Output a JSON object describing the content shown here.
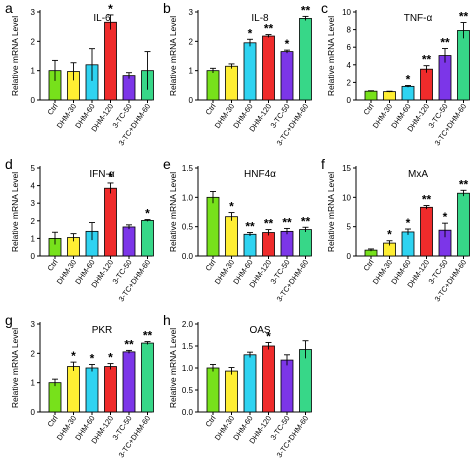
{
  "categories": [
    "Ctrl",
    "DHM-30",
    "DHM-60",
    "DHM-120",
    "3-TC-50",
    "3-TC+DHM-60"
  ],
  "colors": [
    "#77e11b",
    "#ffee33",
    "#2fd3f1",
    "#ef2b2b",
    "#7c36e8",
    "#37d788"
  ],
  "ylabel": "Relative mRNA Level",
  "chart_data": [
    {
      "type": "bar",
      "letter": "a",
      "title": "IL-6",
      "xlabel": "",
      "ylabel": "Relative mRNA Level",
      "ylim": [
        0,
        3
      ],
      "yticks": [
        0,
        1,
        2,
        3
      ],
      "values": [
        1.0,
        0.97,
        1.2,
        2.65,
        0.83,
        1.0
      ],
      "errors": [
        0.35,
        0.3,
        0.55,
        0.25,
        0.1,
        0.65
      ],
      "stars": [
        "",
        "",
        "",
        "*",
        "",
        ""
      ]
    },
    {
      "type": "bar",
      "letter": "b",
      "title": "IL-8",
      "xlabel": "",
      "ylabel": "Relative mRNA Level",
      "ylim": [
        0,
        3
      ],
      "yticks": [
        0,
        1,
        2,
        3
      ],
      "values": [
        1.0,
        1.15,
        1.95,
        2.18,
        1.65,
        2.78
      ],
      "errors": [
        0.08,
        0.08,
        0.12,
        0.05,
        0.05,
        0.07
      ],
      "stars": [
        "",
        "",
        "*",
        "**",
        "*",
        "**"
      ]
    },
    {
      "type": "bar",
      "letter": "c",
      "title": "TNF-α",
      "xlabel": "",
      "ylabel": "Relative mRNA Level",
      "ylim": [
        0,
        10
      ],
      "yticks": [
        0,
        2,
        4,
        6,
        8,
        10
      ],
      "values": [
        1.0,
        0.95,
        1.55,
        3.5,
        5.05,
        7.9
      ],
      "errors": [
        0.05,
        0.05,
        0.1,
        0.4,
        0.8,
        0.9
      ],
      "stars": [
        "",
        "",
        "*",
        "**",
        "**",
        "**"
      ]
    },
    {
      "type": "bar",
      "letter": "d",
      "title": "IFN-α",
      "xlabel": "",
      "ylabel": "Relative mRNA Level",
      "ylim": [
        0,
        5
      ],
      "yticks": [
        0,
        1,
        2,
        3,
        4,
        5
      ],
      "values": [
        1.0,
        1.05,
        1.4,
        3.85,
        1.65,
        2.02
      ],
      "errors": [
        0.35,
        0.22,
        0.5,
        0.3,
        0.12,
        0.05
      ],
      "stars": [
        "",
        "",
        "",
        "*",
        "",
        "*"
      ]
    },
    {
      "type": "bar",
      "letter": "e",
      "title": "HNF4α",
      "xlabel": "",
      "ylabel": "Relative mRNA Level",
      "ylim": [
        0,
        1.5
      ],
      "yticks": [
        0.0,
        0.5,
        1.0,
        1.5
      ],
      "values": [
        1.0,
        0.67,
        0.37,
        0.4,
        0.42,
        0.45
      ],
      "errors": [
        0.1,
        0.07,
        0.03,
        0.05,
        0.05,
        0.04
      ],
      "stars": [
        "",
        "*",
        "**",
        "**",
        "**",
        "**"
      ]
    },
    {
      "type": "bar",
      "letter": "f",
      "title": "MxA",
      "xlabel": "",
      "ylabel": "Relative mRNA Level",
      "ylim": [
        0,
        15
      ],
      "yticks": [
        0,
        5,
        10,
        15
      ],
      "values": [
        1.0,
        2.2,
        4.1,
        8.3,
        4.4,
        10.7
      ],
      "errors": [
        0.2,
        0.4,
        0.5,
        0.3,
        1.2,
        0.5
      ],
      "stars": [
        "",
        "*",
        "*",
        "**",
        "*",
        "**"
      ]
    },
    {
      "type": "bar",
      "letter": "g",
      "title": "PKR",
      "xlabel": "",
      "ylabel": "Relative mRNA Level",
      "ylim": [
        0,
        3
      ],
      "yticks": [
        0,
        1,
        2,
        3
      ],
      "values": [
        1.0,
        1.55,
        1.5,
        1.55,
        2.05,
        2.35
      ],
      "errors": [
        0.12,
        0.15,
        0.12,
        0.1,
        0.05,
        0.05
      ],
      "stars": [
        "",
        "*",
        "*",
        "*",
        "**",
        "**"
      ]
    },
    {
      "type": "bar",
      "letter": "h",
      "title": "OAS",
      "xlabel": "",
      "ylabel": "Relative mRNA Level",
      "ylim": [
        0,
        2
      ],
      "yticks": [
        0.0,
        0.5,
        1.0,
        1.5,
        2.0
      ],
      "values": [
        1.0,
        0.93,
        1.3,
        1.5,
        1.18,
        1.42
      ],
      "errors": [
        0.08,
        0.08,
        0.06,
        0.08,
        0.12,
        0.2
      ],
      "stars": [
        "",
        "",
        "",
        "*",
        "",
        ""
      ]
    }
  ]
}
